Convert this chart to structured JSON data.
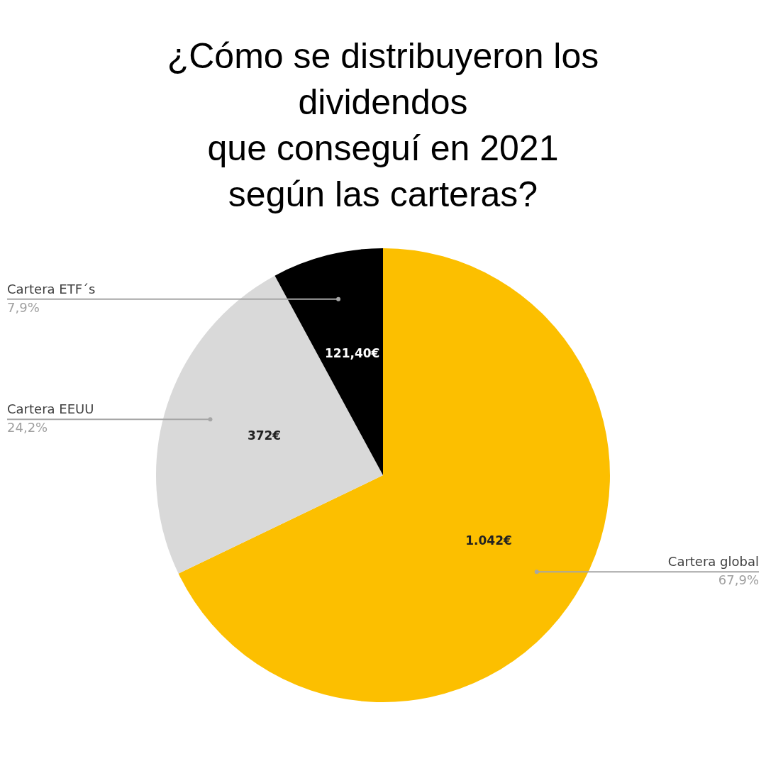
{
  "chart_data": {
    "type": "pie",
    "title": "¿Cómo se distribuyeron los\ndividendos\nque conseguí en 2021\nsegún las carteras?",
    "categories": [
      "Cartera global",
      "Cartera EEUU",
      "Cartera ETF´s"
    ],
    "values": [
      1042,
      372,
      121.4
    ],
    "value_labels": [
      "1.042€",
      "372€",
      "121,40€"
    ],
    "colors": [
      "#fcbf00",
      "#d9d9d9",
      "#000000"
    ],
    "annotations": [
      {
        "text": "67,9%",
        "x": "Cartera global"
      },
      {
        "text": "24,2%",
        "x": "Cartera EEUU"
      },
      {
        "text": "7,9%",
        "x": "Cartera ETF´s"
      }
    ],
    "legend": false
  }
}
